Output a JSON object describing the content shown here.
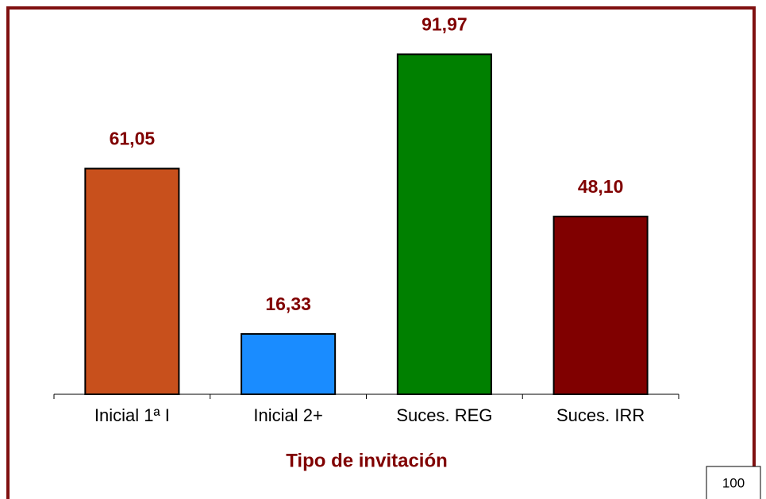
{
  "chart_data": {
    "type": "bar",
    "categories": [
      "Inicial 1ª I",
      "Inicial 2+",
      "Suces. REG",
      "Suces. IRR"
    ],
    "values": [
      61.05,
      16.33,
      91.97,
      48.1
    ],
    "value_labels": [
      "61,05",
      "16,33",
      "91,97",
      "48,10"
    ],
    "colors": [
      "#c8501c",
      "#1a8cff",
      "#008000",
      "#800000"
    ],
    "x_label": "Tipo de invitación",
    "ylim": [
      0,
      100
    ]
  },
  "page_number": "100"
}
